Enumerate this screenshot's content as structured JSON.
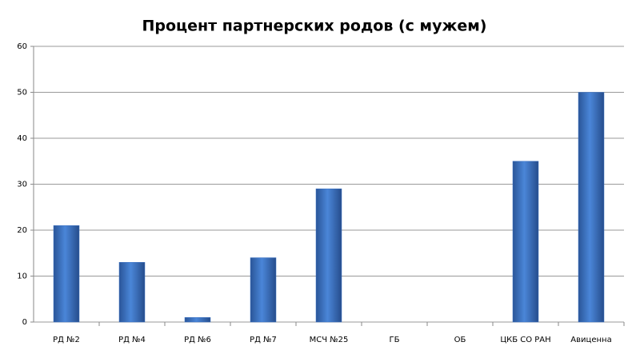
{
  "chart_data": {
    "type": "bar",
    "title": "Процент партнерских родов (с мужем)",
    "categories": [
      "РД №2",
      "РД №4",
      "РД №6",
      "РД №7",
      "МСЧ №25",
      "ГБ",
      "ОБ",
      "ЦКБ СО РАН",
      "Авиценна"
    ],
    "values": [
      21,
      13,
      1,
      14,
      29,
      0,
      0,
      35,
      50
    ],
    "color": "#3f74c4",
    "ylim": [
      0,
      60
    ],
    "yticks": [
      0,
      10,
      20,
      30,
      40,
      50,
      60
    ],
    "grid": true
  }
}
